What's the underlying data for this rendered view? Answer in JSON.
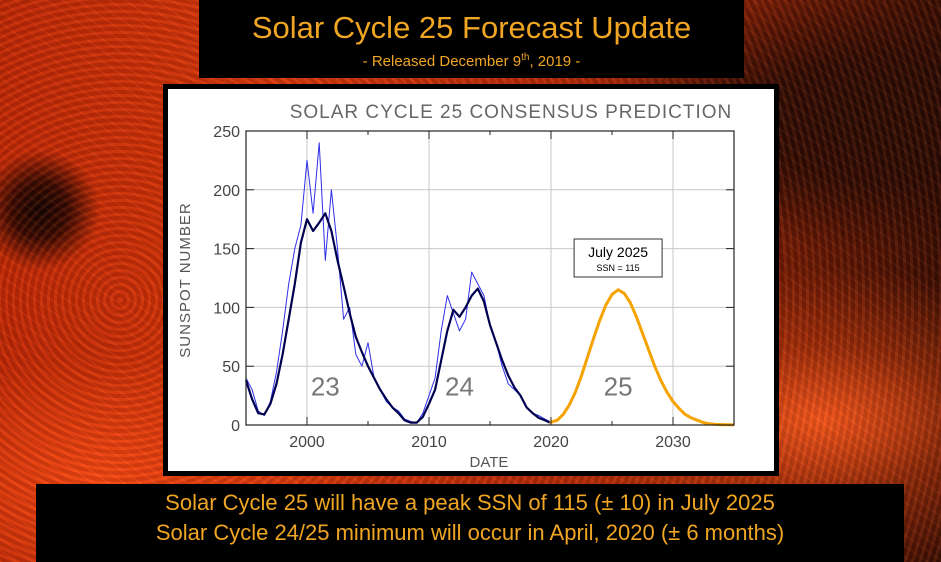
{
  "header": {
    "title": "Solar Cycle 25 Forecast Update",
    "subtitle_prefix": "- Released December 9",
    "subtitle_sup": "th",
    "subtitle_suffix": ", 2019 -"
  },
  "footer": {
    "line1": "Solar Cycle 25 will have a peak SSN of 115 (± 10) in July 2025",
    "line2": "Solar Cycle 24/25 minimum will occur in April, 2020 (± 6 months)"
  },
  "chart_data": {
    "type": "line",
    "title": "SOLAR CYCLE 25 CONSENSUS PREDICTION",
    "xlabel": "DATE",
    "ylabel": "SUNSPOT NUMBER",
    "xlim": [
      1995,
      2035
    ],
    "ylim": [
      0,
      250
    ],
    "xticks": [
      2000,
      2010,
      2020,
      2030
    ],
    "yticks": [
      0,
      50,
      100,
      150,
      200,
      250
    ],
    "grid": true,
    "cycle_labels": [
      {
        "text": "23",
        "x": 2001.5,
        "y": 25
      },
      {
        "text": "24",
        "x": 2012.5,
        "y": 25
      },
      {
        "text": "25",
        "x": 2025.5,
        "y": 25
      }
    ],
    "annotation": {
      "title": "July 2025",
      "text": "SSN = 115",
      "x": 2025.5,
      "y": 115
    },
    "colors": {
      "monthly": "#2f2fe8",
      "smoothed": "#000050",
      "prediction": "#f5a300"
    },
    "series": [
      {
        "style": "monthly-noisy",
        "x": [
          1995,
          1995.5,
          1996,
          1996.5,
          1997,
          1997.5,
          1998,
          1998.5,
          1999,
          1999.5,
          2000,
          2000.5,
          2001,
          2001.5,
          2002,
          2002.5,
          2003,
          2003.5,
          2004,
          2004.5,
          2005,
          2005.5,
          2006,
          2006.5,
          2007,
          2007.5,
          2008,
          2008.5,
          2009,
          2009.5,
          2010,
          2010.5,
          2011,
          2011.5,
          2012,
          2012.5,
          2013,
          2013.5,
          2014,
          2014.5,
          2015,
          2015.5,
          2016,
          2016.5,
          2017,
          2017.5,
          2018,
          2018.5,
          2019,
          2019.5,
          2019.9
        ],
        "y": [
          40,
          30,
          12,
          8,
          20,
          45,
          80,
          120,
          150,
          170,
          225,
          180,
          240,
          140,
          200,
          150,
          90,
          100,
          60,
          50,
          70,
          40,
          30,
          20,
          15,
          12,
          5,
          3,
          2,
          10,
          25,
          40,
          80,
          110,
          95,
          80,
          90,
          130,
          120,
          110,
          85,
          70,
          50,
          35,
          30,
          25,
          15,
          10,
          8,
          5,
          3
        ]
      },
      {
        "style": "smoothed",
        "x": [
          1995,
          1995.5,
          1996,
          1996.5,
          1997,
          1997.5,
          1998,
          1998.5,
          1999,
          1999.5,
          2000,
          2000.5,
          2001,
          2001.5,
          2002,
          2002.5,
          2003,
          2003.5,
          2004,
          2004.5,
          2005,
          2005.5,
          2006,
          2006.5,
          2007,
          2007.5,
          2008,
          2008.5,
          2009,
          2009.5,
          2010,
          2010.5,
          2011,
          2011.5,
          2012,
          2012.5,
          2013,
          2013.5,
          2014,
          2014.5,
          2015,
          2015.5,
          2016,
          2016.5,
          2017,
          2017.5,
          2018,
          2018.5,
          2019,
          2019.5,
          2019.9
        ],
        "y": [
          38,
          22,
          10,
          9,
          18,
          35,
          60,
          90,
          120,
          155,
          175,
          165,
          172,
          180,
          165,
          140,
          118,
          95,
          75,
          62,
          50,
          40,
          30,
          22,
          15,
          10,
          4,
          2,
          2,
          7,
          18,
          30,
          55,
          80,
          98,
          92,
          100,
          110,
          116,
          105,
          85,
          70,
          55,
          42,
          32,
          25,
          15,
          10,
          6,
          4,
          2
        ]
      },
      {
        "style": "prediction",
        "x": [
          2019.9,
          2020.5,
          2021,
          2021.5,
          2022,
          2022.5,
          2023,
          2023.5,
          2024,
          2024.5,
          2025,
          2025.5,
          2026,
          2026.5,
          2027,
          2027.5,
          2028,
          2028.5,
          2029,
          2029.5,
          2030,
          2030.5,
          2031,
          2031.5,
          2032,
          2032.5,
          2033,
          2033.5,
          2034,
          2034.5,
          2035
        ],
        "y": [
          2,
          4,
          9,
          17,
          28,
          42,
          58,
          74,
          89,
          102,
          111,
          115,
          112,
          104,
          92,
          78,
          64,
          50,
          38,
          28,
          20,
          14,
          9,
          6,
          4,
          2,
          1,
          0.5,
          0.3,
          0.2,
          0.1
        ]
      }
    ]
  }
}
